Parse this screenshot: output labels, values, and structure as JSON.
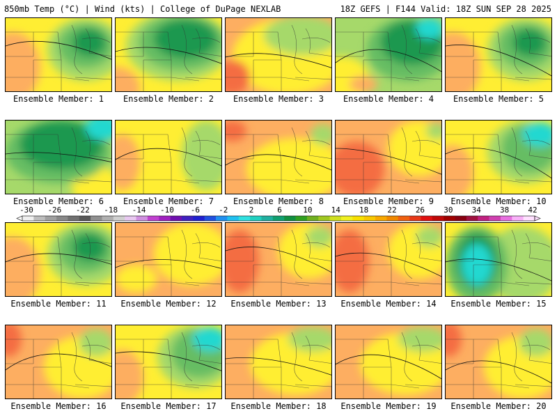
{
  "header": {
    "left_title": "850mb Temp (°C) | Wind (kts) | College of DuPage NEXLAB",
    "right_title": "18Z GEFS | F144 Valid: 18Z SUN SEP 28 2025"
  },
  "member_label_prefix": "Ensemble Member: ",
  "members": [
    {
      "number": 1,
      "label": "Ensemble Member: 1"
    },
    {
      "number": 2,
      "label": "Ensemble Member: 2"
    },
    {
      "number": 3,
      "label": "Ensemble Member: 3"
    },
    {
      "number": 4,
      "label": "Ensemble Member: 4"
    },
    {
      "number": 5,
      "label": "Ensemble Member: 5"
    },
    {
      "number": 6,
      "label": "Ensemble Member: 6"
    },
    {
      "number": 7,
      "label": "Ensemble Member: 7"
    },
    {
      "number": 8,
      "label": "Ensemble Member: 8"
    },
    {
      "number": 9,
      "label": "Ensemble Member: 9"
    },
    {
      "number": 10,
      "label": "Ensemble Member: 10"
    },
    {
      "number": 11,
      "label": "Ensemble Member: 11"
    },
    {
      "number": 12,
      "label": "Ensemble Member: 12"
    },
    {
      "number": 13,
      "label": "Ensemble Member: 13"
    },
    {
      "number": 14,
      "label": "Ensemble Member: 14"
    },
    {
      "number": 15,
      "label": "Ensemble Member: 15"
    },
    {
      "number": 16,
      "label": "Ensemble Member: 16"
    },
    {
      "number": 17,
      "label": "Ensemble Member: 17"
    },
    {
      "number": 18,
      "label": "Ensemble Member: 18"
    },
    {
      "number": 19,
      "label": "Ensemble Member: 19"
    },
    {
      "number": 20,
      "label": "Ensemble Member: 20"
    }
  ],
  "colorbar": {
    "labels": [
      "-30",
      "-26",
      "-22",
      "-18",
      "-14",
      "-10",
      "-6",
      "-2",
      "2",
      "6",
      "10",
      "14",
      "18",
      "22",
      "26",
      "30",
      "34",
      "38",
      "42"
    ],
    "colors": [
      "#f0f0f0",
      "#bdbdbd",
      "#a0a0a0",
      "#888888",
      "#707070",
      "#585858",
      "#909090",
      "#b0b0b0",
      "#d0d0d0",
      "#e8c8f0",
      "#d090e0",
      "#c040d0",
      "#a020c0",
      "#7010b0",
      "#4020c0",
      "#2020d0",
      "#2050e0",
      "#2090f0",
      "#20c0f0",
      "#30e0e0",
      "#20d0c0",
      "#20b0a0",
      "#10a070",
      "#109040",
      "#30a020",
      "#70b020",
      "#a0c820",
      "#d0e020",
      "#f0f020",
      "#f8e000",
      "#f8c800",
      "#f8a800",
      "#f08800",
      "#f06010",
      "#e83818",
      "#e01010",
      "#c00808",
      "#a00000",
      "#880010",
      "#a01040",
      "#c02080",
      "#d040b0",
      "#e870e0",
      "#f8b0f8",
      "#ffe0ff"
    ]
  },
  "color_keys": {
    "cold_green": "#1a9850",
    "cool_green": "#66bd63",
    "lime": "#a6d96a",
    "yellow": "#ffee33",
    "orange": "#fdae61",
    "red_orange": "#f46d43",
    "cyan": "#20d8d0"
  },
  "member_patterns": [
    "ne_green_mid",
    "n_green_strong",
    "n_green_light",
    "ne_green_strong",
    "ne_green_mid",
    "n_green_strong_cyan",
    "e_lime",
    "warm_w",
    "warm_sw",
    "ne_green_cyan",
    "ne_green_mid",
    "warm_mixed",
    "warm_w_red",
    "warm_w_red",
    "w_cyan_trough",
    "warm_nw_red",
    "ne_green_cyan",
    "warm_light",
    "warm_light",
    "warm_nw_red"
  ]
}
